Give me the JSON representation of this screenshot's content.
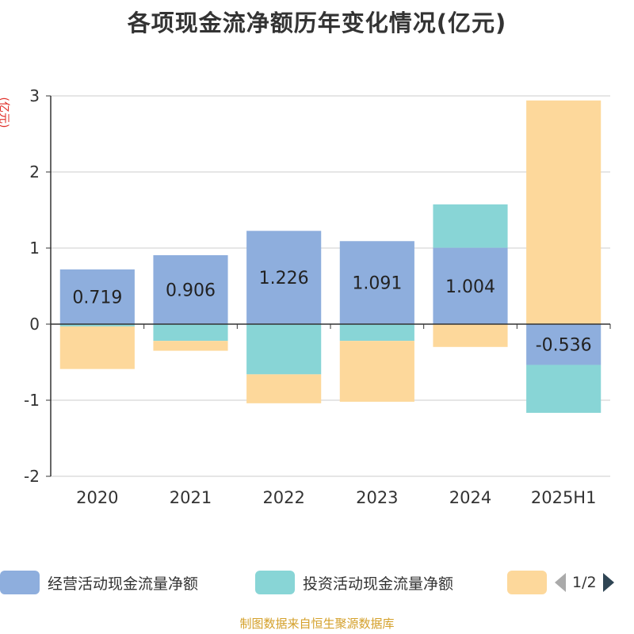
{
  "title": "各项现金流净额历年变化情况(亿元)",
  "source": "制图数据来自恒生聚源数据库",
  "legend": {
    "page_indicator": "1/2"
  },
  "colors": {
    "operating": "#8eaedd",
    "investing": "#88d5d6",
    "financing": "#fdd89b",
    "grid": "#cccccc",
    "axis": "#333333"
  },
  "chart_data": {
    "type": "bar",
    "stacked": true,
    "ylabel": "(亿元)",
    "ylim": [
      -2,
      3
    ],
    "yticks": [
      -2,
      -1,
      0,
      1,
      2,
      3
    ],
    "categories": [
      "2020",
      "2021",
      "2022",
      "2023",
      "2024",
      "2025H1"
    ],
    "series": [
      {
        "name": "经营活动现金流量净额",
        "values": [
          0.719,
          0.906,
          1.226,
          1.091,
          1.004,
          -0.536
        ],
        "show_labels": true
      },
      {
        "name": "投资活动现金流量净额",
        "values": [
          -0.03,
          -0.22,
          -0.66,
          -0.22,
          0.57,
          -0.63
        ],
        "show_labels": false
      },
      {
        "name": "",
        "values": [
          -0.56,
          -0.13,
          -0.38,
          -0.8,
          -0.3,
          2.94
        ],
        "show_labels": false
      }
    ],
    "grid": true
  }
}
